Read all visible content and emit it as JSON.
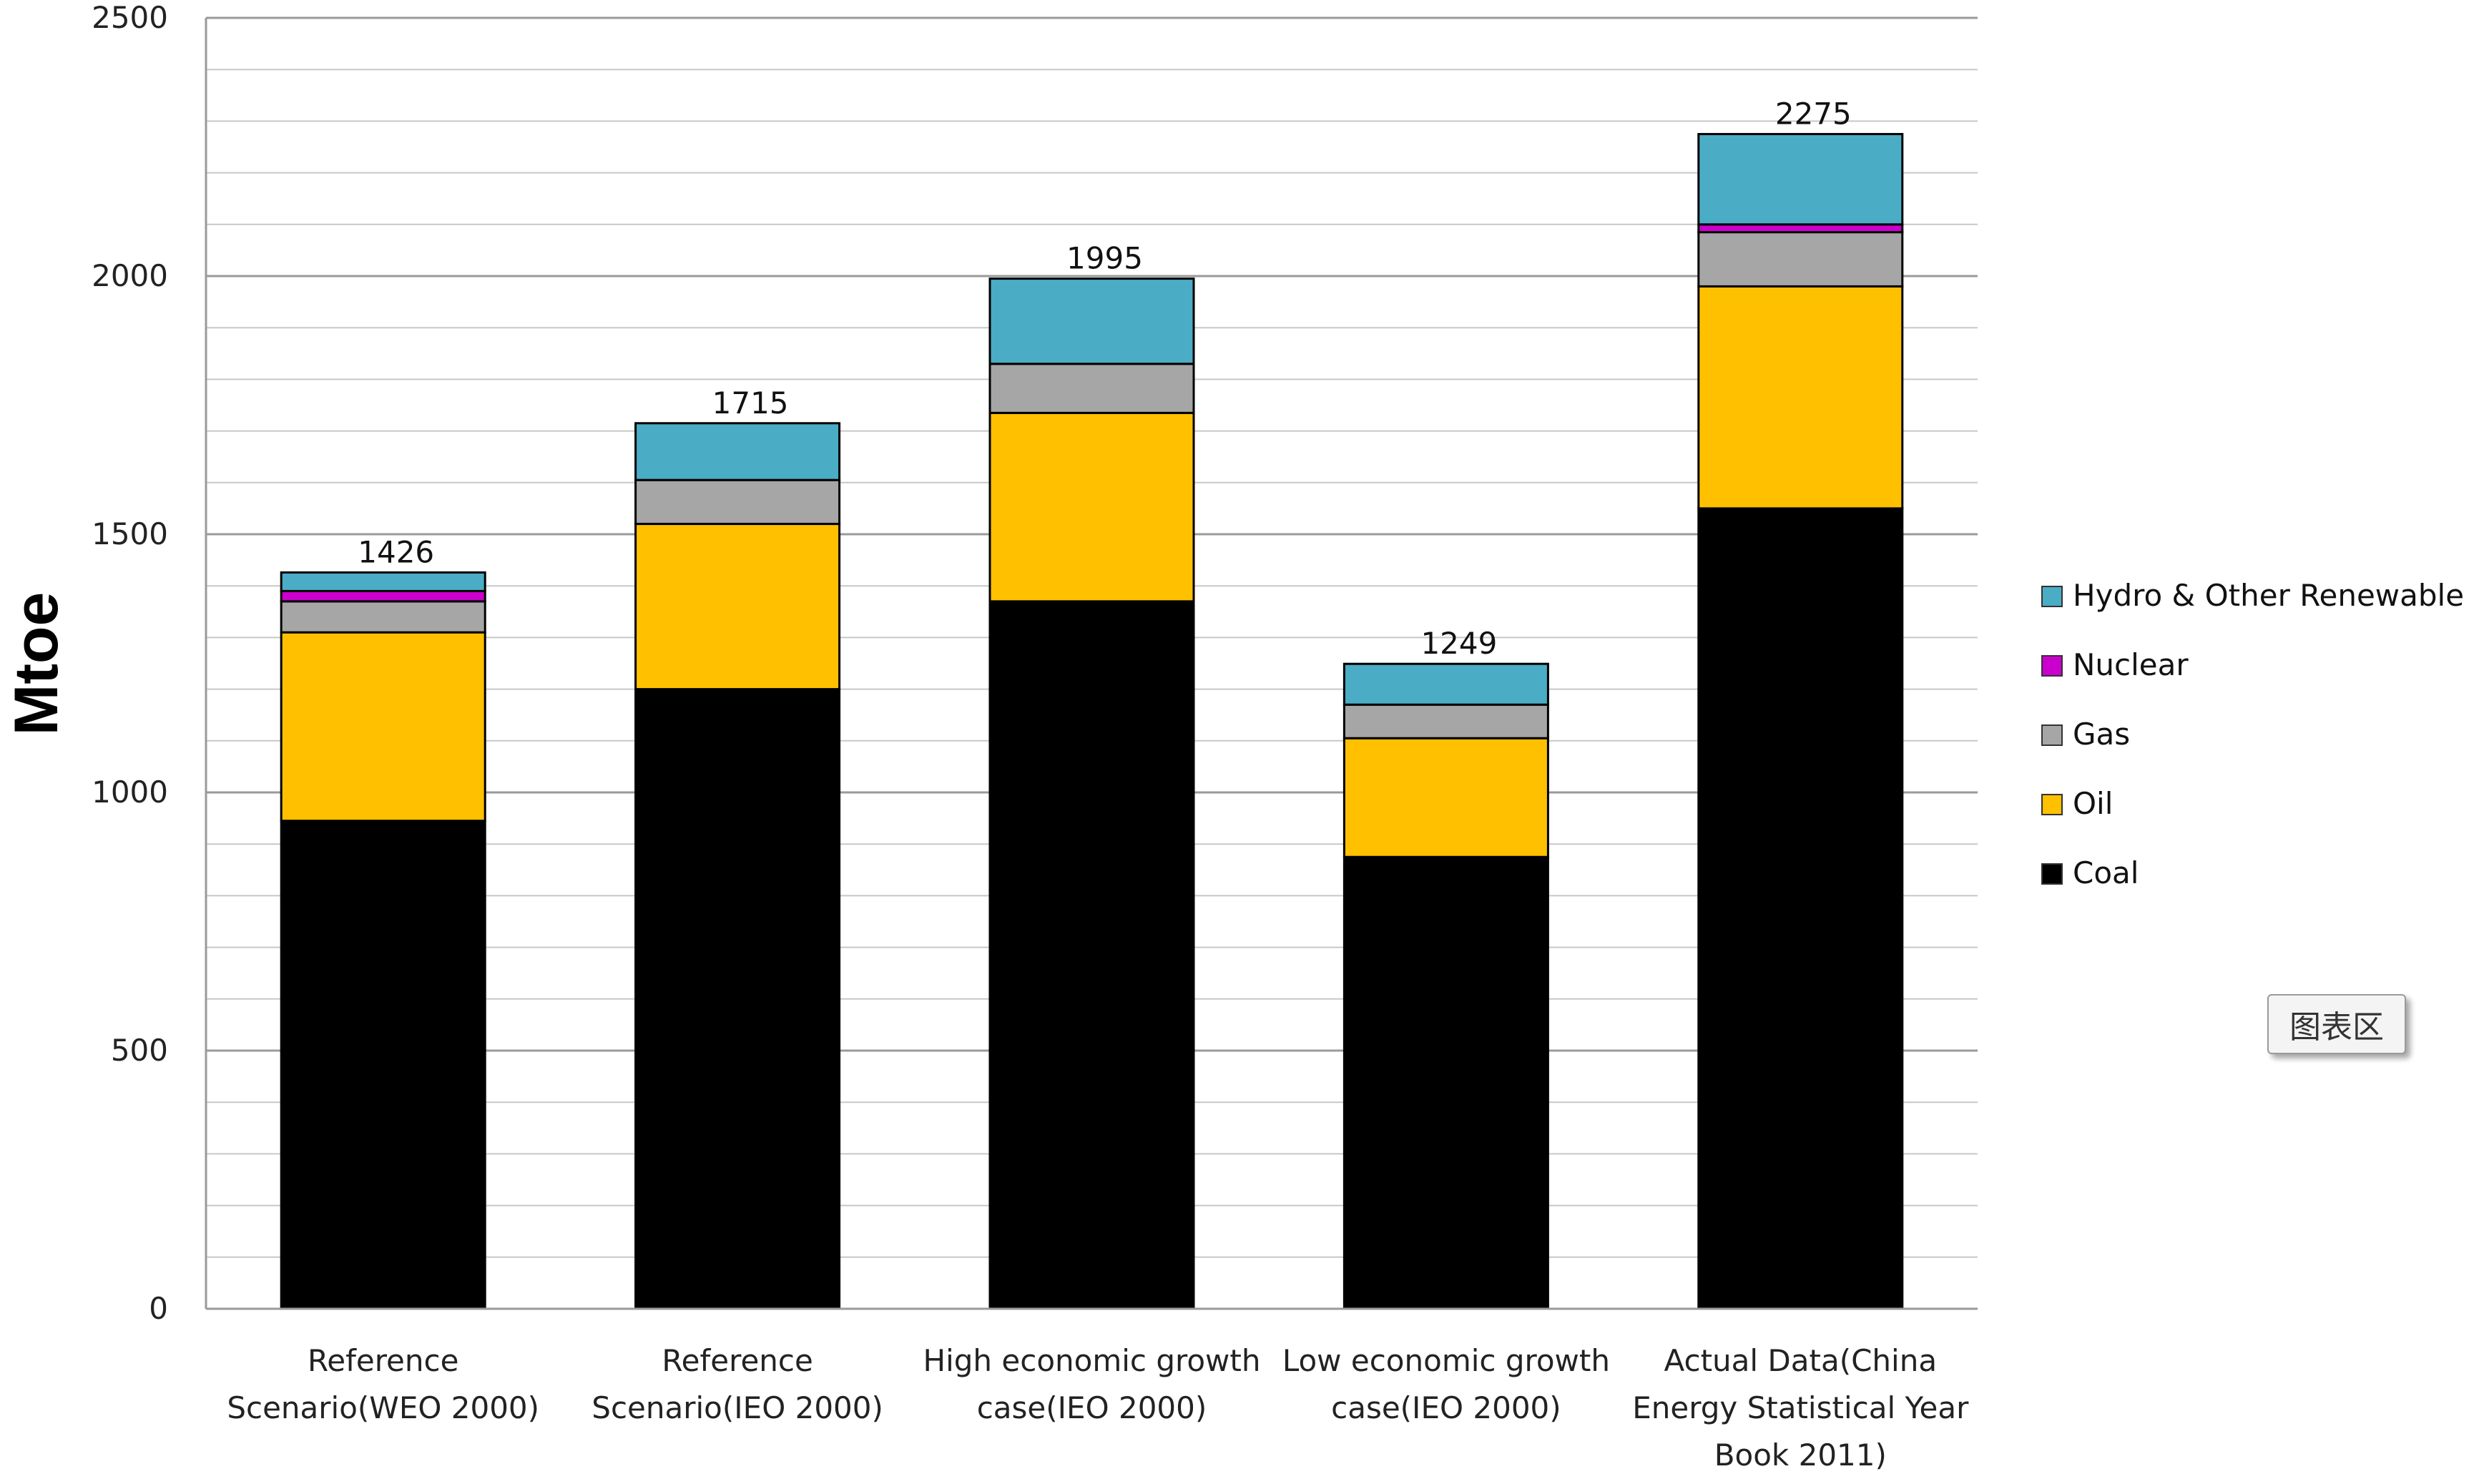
{
  "chart_data": {
    "type": "bar",
    "stacked": true,
    "ylabel": "Mtoe",
    "ylim": [
      0,
      2500
    ],
    "yticks": [
      0,
      500,
      1000,
      1500,
      2000,
      2500
    ],
    "grid": true,
    "legend_position": "right",
    "categories": [
      [
        "Reference",
        "Scenario(WEO 2000)"
      ],
      [
        "Reference",
        "Scenario(IEO 2000)"
      ],
      [
        "High economic growth",
        "case(IEO 2000)"
      ],
      [
        "Low economic growth",
        "case(IEO 2000)"
      ],
      [
        "Actual Data(China",
        "Energy Statistical Year",
        "Book 2011)"
      ]
    ],
    "totals": [
      "1426",
      "1715",
      "1995",
      "1249",
      "2275"
    ],
    "series": [
      {
        "name": "Coal",
        "color": "#000000",
        "values": [
          945,
          1200,
          1370,
          875,
          1550
        ]
      },
      {
        "name": "Oil",
        "color": "#FFC000",
        "values": [
          365,
          320,
          365,
          230,
          430
        ]
      },
      {
        "name": "Gas",
        "color": "#A6A6A6",
        "values": [
          60,
          85,
          95,
          65,
          105
        ]
      },
      {
        "name": "Nuclear",
        "color": "#CC00CC",
        "values": [
          20,
          0,
          0,
          0,
          15
        ]
      },
      {
        "name": "Hydro & Other Renewable",
        "color": "#4BACC6",
        "values": [
          36,
          110,
          165,
          79,
          175
        ]
      }
    ]
  },
  "ui": {
    "chart_area_label": "图表区"
  }
}
